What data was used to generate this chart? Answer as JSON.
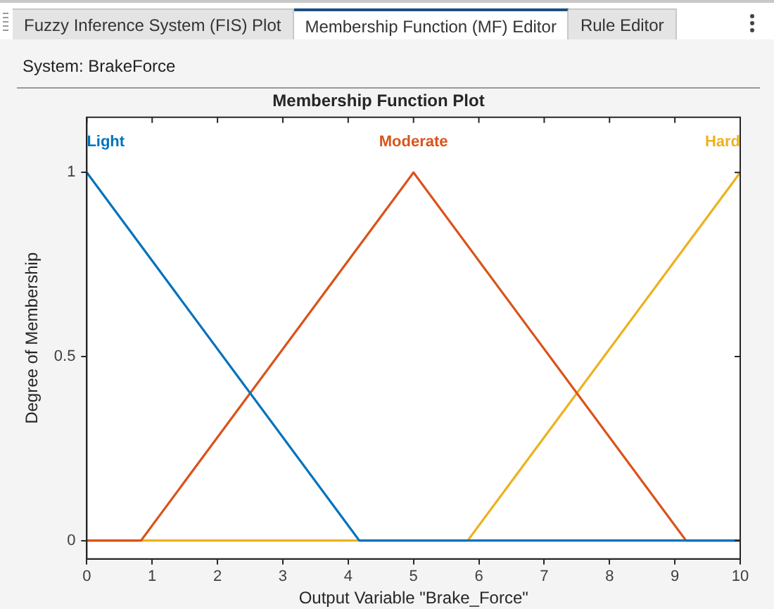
{
  "chart_data": {
    "type": "line",
    "title": "Membership Function Plot",
    "xlabel": "Output Variable \"Brake_Force\"",
    "ylabel": "Degree of Membership",
    "annotations": [
      "Fuzzy Inference System (FIS) Plot",
      "Membership Function (MF) Editor",
      "Rule Editor",
      "System: BrakeForce"
    ],
    "series": [
      {
        "name": "Light",
        "color": "#0072bd",
        "x": [
          0,
          4.17,
          10
        ],
        "values": [
          1,
          0,
          0
        ]
      },
      {
        "name": "Moderate",
        "color": "#d95319",
        "x": [
          0,
          0.83,
          5,
          9.17,
          10
        ],
        "values": [
          0,
          0,
          1,
          0,
          0
        ]
      },
      {
        "name": "Hard",
        "color": "#edb120",
        "x": [
          0,
          5.83,
          10
        ],
        "values": [
          0,
          0,
          1
        ]
      }
    ],
    "xlim": [
      0,
      10
    ],
    "xticks": [
      0,
      1,
      2,
      3,
      4,
      5,
      6,
      7,
      8,
      9,
      10
    ],
    "ylim": [
      -0.05,
      1.15
    ],
    "yticks": [
      0,
      0.5,
      1
    ],
    "grid": false,
    "legend": false,
    "marker": "none",
    "line_style": "solid"
  }
}
